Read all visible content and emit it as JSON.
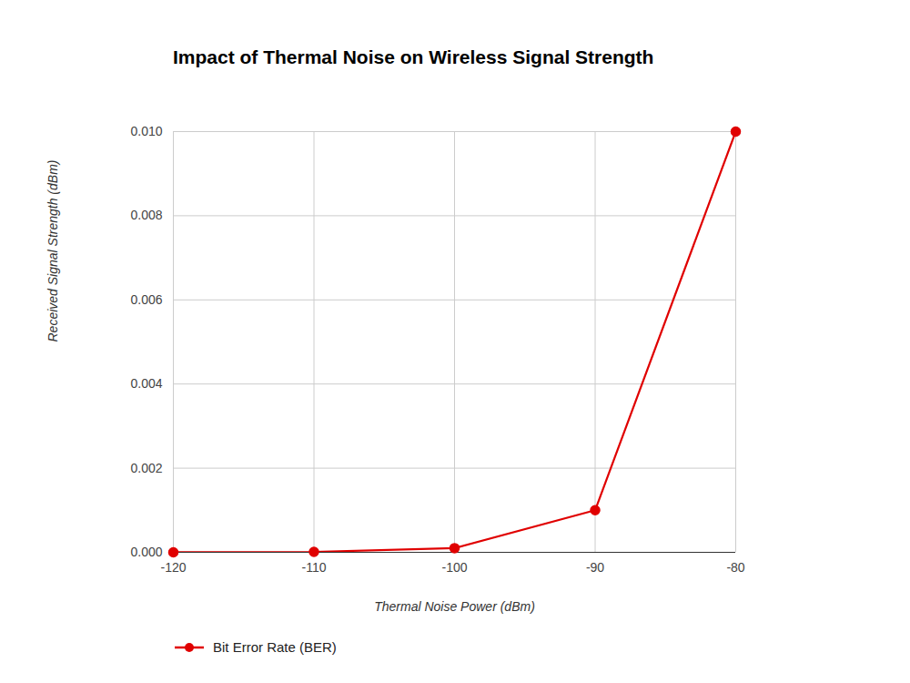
{
  "chart_data": {
    "type": "line",
    "title": "Impact of Thermal Noise on Wireless Signal Strength",
    "x_label": "Thermal Noise Power (dBm)",
    "y_label": "Received Signal Strength (dBm)",
    "x": [
      -120,
      -110,
      -100,
      -90,
      -80
    ],
    "series": [
      {
        "name": "Bit Error Rate (BER)",
        "color": "#e00000",
        "marker": "circle",
        "values": [
          1e-06,
          1e-05,
          0.0001,
          0.001,
          0.01
        ]
      }
    ],
    "xlim": [
      -120,
      -80
    ],
    "xticks": [
      -120,
      -110,
      -100,
      -90,
      -80
    ],
    "ylim": [
      0,
      0.01
    ],
    "yticks": [
      {
        "value": 0,
        "label": "0.000"
      },
      0.002,
      0.004,
      0.006,
      0.008,
      {
        "value": 0.01,
        "label": "0.010"
      }
    ],
    "grid": true,
    "legend": "bottom"
  }
}
